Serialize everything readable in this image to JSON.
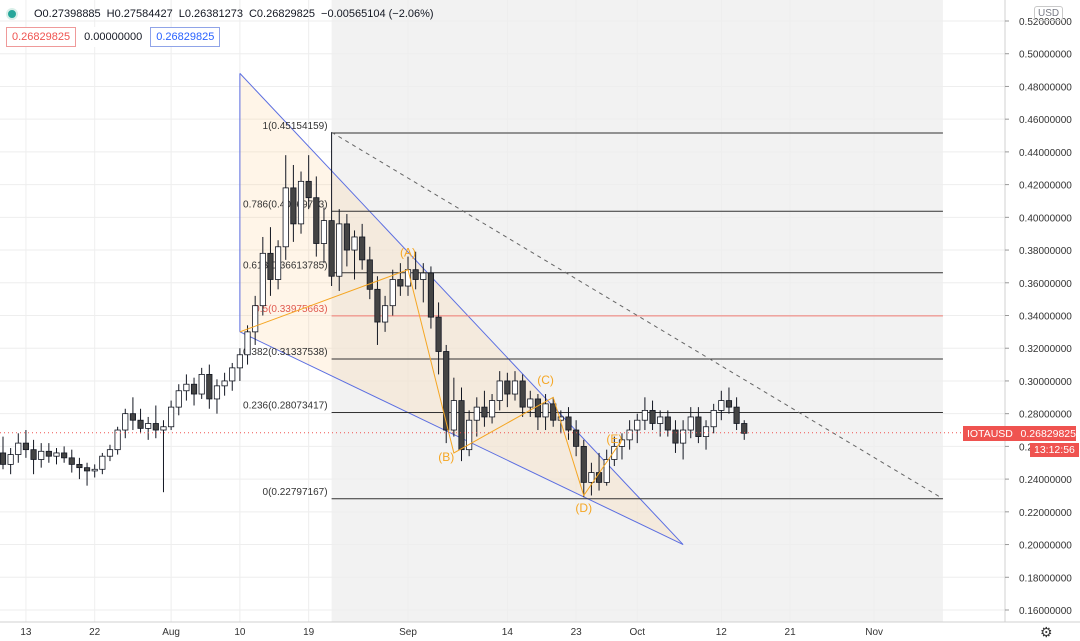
{
  "header": {
    "status_icon": "green-dot-icon",
    "open": "O0.27398885",
    "high": "H0.27584427",
    "low": "L0.26381273",
    "close": "C0.26829825",
    "change": "−0.00565104 (−2.06%)"
  },
  "boxes": {
    "left": "0.26829825",
    "mid": "0.00000000",
    "right": "0.26829825"
  },
  "currency": "USD",
  "last_price": {
    "symbol": "IOTAUSD",
    "value": "0.26829825",
    "countdown": "13:12:56"
  },
  "settings_icon": "gear-icon",
  "colors": {
    "up": "#ffffff",
    "down": "#ffffff",
    "wick": "#131722",
    "trendline": "#5b6ee1",
    "wave": "#f5a623",
    "fib_fill": "#f2f2f2",
    "price_line": "#ef5350"
  },
  "chart_data": {
    "type": "candlestick",
    "symbol": "IOTAUSD",
    "y_axis": {
      "ylim": [
        0.155,
        0.525
      ],
      "ticks": [
        0.16,
        0.18,
        0.2,
        0.22,
        0.24,
        0.26,
        0.28,
        0.3,
        0.32,
        0.34,
        0.36,
        0.38,
        0.4,
        0.42,
        0.44,
        0.46,
        0.48,
        0.5,
        0.52
      ],
      "tick_labels": [
        "0.16000000",
        "0.18000000",
        "0.20000000",
        "0.22000000",
        "0.24000000",
        "0.26000000",
        "0.28000000",
        "0.30000000",
        "0.32000000",
        "0.34000000",
        "0.36000000",
        "0.38000000",
        "0.40000000",
        "0.42000000",
        "0.44000000",
        "0.46000000",
        "0.48000000",
        "0.50000000",
        "0.52000000"
      ]
    },
    "x_axis": {
      "start": "2019-07-10",
      "end": "2019-11-07",
      "ticks": [
        {
          "date": "2019-07-13",
          "label": "13"
        },
        {
          "date": "2019-07-22",
          "label": "22"
        },
        {
          "date": "2019-08-01",
          "label": "Aug"
        },
        {
          "date": "2019-08-10",
          "label": "10"
        },
        {
          "date": "2019-08-19",
          "label": "19"
        },
        {
          "date": "2019-09-01",
          "label": "Sep"
        },
        {
          "date": "2019-09-14",
          "label": "14"
        },
        {
          "date": "2019-09-23",
          "label": "23"
        },
        {
          "date": "2019-10-01",
          "label": "Oct"
        },
        {
          "date": "2019-10-12",
          "label": "12"
        },
        {
          "date": "2019-10-21",
          "label": "21"
        },
        {
          "date": "2019-11-01",
          "label": "Nov"
        }
      ]
    },
    "candles": [
      [
        "2019-07-10",
        0.256,
        0.266,
        0.246,
        0.249
      ],
      [
        "2019-07-11",
        0.249,
        0.259,
        0.243,
        0.255
      ],
      [
        "2019-07-12",
        0.255,
        0.268,
        0.25,
        0.262
      ],
      [
        "2019-07-13",
        0.262,
        0.27,
        0.253,
        0.258
      ],
      [
        "2019-07-14",
        0.258,
        0.264,
        0.243,
        0.252
      ],
      [
        "2019-07-15",
        0.252,
        0.262,
        0.247,
        0.257
      ],
      [
        "2019-07-16",
        0.257,
        0.262,
        0.25,
        0.254
      ],
      [
        "2019-07-17",
        0.254,
        0.259,
        0.249,
        0.256
      ],
      [
        "2019-07-18",
        0.256,
        0.26,
        0.25,
        0.253
      ],
      [
        "2019-07-19",
        0.253,
        0.258,
        0.244,
        0.249
      ],
      [
        "2019-07-20",
        0.249,
        0.253,
        0.24,
        0.247
      ],
      [
        "2019-07-21",
        0.247,
        0.25,
        0.236,
        0.245
      ],
      [
        "2019-07-22",
        0.245,
        0.249,
        0.241,
        0.246
      ],
      [
        "2019-07-23",
        0.246,
        0.256,
        0.243,
        0.254
      ],
      [
        "2019-07-24",
        0.254,
        0.261,
        0.251,
        0.258
      ],
      [
        "2019-07-25",
        0.258,
        0.272,
        0.255,
        0.27
      ],
      [
        "2019-07-26",
        0.27,
        0.283,
        0.265,
        0.28
      ],
      [
        "2019-07-27",
        0.28,
        0.29,
        0.27,
        0.276
      ],
      [
        "2019-07-28",
        0.276,
        0.283,
        0.268,
        0.271
      ],
      [
        "2019-07-29",
        0.271,
        0.278,
        0.264,
        0.274
      ],
      [
        "2019-07-30",
        0.274,
        0.285,
        0.265,
        0.27
      ],
      [
        "2019-07-31",
        0.27,
        0.276,
        0.232,
        0.272
      ],
      [
        "2019-08-01",
        0.272,
        0.288,
        0.27,
        0.284
      ],
      [
        "2019-08-02",
        0.284,
        0.298,
        0.279,
        0.294
      ],
      [
        "2019-08-03",
        0.294,
        0.304,
        0.288,
        0.298
      ],
      [
        "2019-08-04",
        0.298,
        0.302,
        0.285,
        0.292
      ],
      [
        "2019-08-05",
        0.292,
        0.308,
        0.289,
        0.304
      ],
      [
        "2019-08-06",
        0.304,
        0.31,
        0.283,
        0.289
      ],
      [
        "2019-08-07",
        0.289,
        0.301,
        0.28,
        0.297
      ],
      [
        "2019-08-08",
        0.297,
        0.305,
        0.291,
        0.3
      ],
      [
        "2019-08-09",
        0.3,
        0.311,
        0.294,
        0.308
      ],
      [
        "2019-08-10",
        0.308,
        0.32,
        0.3,
        0.316
      ],
      [
        "2019-08-11",
        0.316,
        0.334,
        0.31,
        0.33
      ],
      [
        "2019-08-12",
        0.33,
        0.352,
        0.322,
        0.346
      ],
      [
        "2019-08-13",
        0.346,
        0.388,
        0.34,
        0.378
      ],
      [
        "2019-08-14",
        0.378,
        0.394,
        0.352,
        0.362
      ],
      [
        "2019-08-15",
        0.362,
        0.386,
        0.356,
        0.382
      ],
      [
        "2019-08-16",
        0.382,
        0.438,
        0.374,
        0.418
      ],
      [
        "2019-08-17",
        0.418,
        0.432,
        0.385,
        0.396
      ],
      [
        "2019-08-18",
        0.396,
        0.428,
        0.39,
        0.422
      ],
      [
        "2019-08-19",
        0.422,
        0.438,
        0.405,
        0.412
      ],
      [
        "2019-08-20",
        0.412,
        0.425,
        0.376,
        0.384
      ],
      [
        "2019-08-21",
        0.384,
        0.406,
        0.372,
        0.398
      ],
      [
        "2019-08-22",
        0.398,
        0.452,
        0.358,
        0.364
      ],
      [
        "2019-08-23",
        0.364,
        0.405,
        0.355,
        0.396
      ],
      [
        "2019-08-24",
        0.396,
        0.402,
        0.37,
        0.38
      ],
      [
        "2019-08-25",
        0.38,
        0.392,
        0.362,
        0.388
      ],
      [
        "2019-08-26",
        0.388,
        0.396,
        0.368,
        0.374
      ],
      [
        "2019-08-27",
        0.374,
        0.382,
        0.35,
        0.356
      ],
      [
        "2019-08-28",
        0.356,
        0.364,
        0.322,
        0.336
      ],
      [
        "2019-08-29",
        0.336,
        0.352,
        0.33,
        0.346
      ],
      [
        "2019-08-30",
        0.346,
        0.368,
        0.34,
        0.362
      ],
      [
        "2019-08-31",
        0.362,
        0.372,
        0.352,
        0.358
      ],
      [
        "2019-09-01",
        0.358,
        0.376,
        0.352,
        0.368
      ],
      [
        "2019-09-02",
        0.368,
        0.379,
        0.356,
        0.362
      ],
      [
        "2019-09-03",
        0.362,
        0.372,
        0.348,
        0.366
      ],
      [
        "2019-09-04",
        0.366,
        0.37,
        0.332,
        0.339
      ],
      [
        "2019-09-05",
        0.339,
        0.348,
        0.304,
        0.318
      ],
      [
        "2019-09-06",
        0.318,
        0.322,
        0.262,
        0.27
      ],
      [
        "2019-09-07",
        0.27,
        0.302,
        0.266,
        0.288
      ],
      [
        "2019-09-08",
        0.288,
        0.296,
        0.251,
        0.258
      ],
      [
        "2019-09-09",
        0.258,
        0.282,
        0.254,
        0.276
      ],
      [
        "2019-09-10",
        0.276,
        0.29,
        0.266,
        0.284
      ],
      [
        "2019-09-11",
        0.284,
        0.294,
        0.272,
        0.278
      ],
      [
        "2019-09-12",
        0.278,
        0.292,
        0.274,
        0.288
      ],
      [
        "2019-09-13",
        0.288,
        0.306,
        0.282,
        0.3
      ],
      [
        "2019-09-14",
        0.3,
        0.305,
        0.284,
        0.292
      ],
      [
        "2019-09-15",
        0.292,
        0.306,
        0.288,
        0.3
      ],
      [
        "2019-09-16",
        0.3,
        0.304,
        0.278,
        0.284
      ],
      [
        "2019-09-17",
        0.284,
        0.294,
        0.278,
        0.289
      ],
      [
        "2019-09-18",
        0.289,
        0.292,
        0.27,
        0.278
      ],
      [
        "2019-09-19",
        0.278,
        0.292,
        0.27,
        0.286
      ],
      [
        "2019-09-20",
        0.286,
        0.29,
        0.272,
        0.276
      ],
      [
        "2019-09-21",
        0.276,
        0.282,
        0.268,
        0.278
      ],
      [
        "2019-09-22",
        0.278,
        0.284,
        0.264,
        0.27
      ],
      [
        "2019-09-23",
        0.27,
        0.276,
        0.254,
        0.26
      ],
      [
        "2019-09-24",
        0.26,
        0.264,
        0.229,
        0.238
      ],
      [
        "2019-09-25",
        0.238,
        0.25,
        0.23,
        0.244
      ],
      [
        "2019-09-26",
        0.244,
        0.256,
        0.233,
        0.238
      ],
      [
        "2019-09-27",
        0.238,
        0.258,
        0.236,
        0.252
      ],
      [
        "2019-09-28",
        0.252,
        0.266,
        0.248,
        0.26
      ],
      [
        "2019-09-29",
        0.26,
        0.268,
        0.252,
        0.264
      ],
      [
        "2019-09-30",
        0.264,
        0.276,
        0.258,
        0.27
      ],
      [
        "2019-10-01",
        0.27,
        0.28,
        0.262,
        0.276
      ],
      [
        "2019-10-02",
        0.276,
        0.29,
        0.27,
        0.282
      ],
      [
        "2019-10-03",
        0.282,
        0.288,
        0.27,
        0.274
      ],
      [
        "2019-10-04",
        0.274,
        0.282,
        0.266,
        0.278
      ],
      [
        "2019-10-05",
        0.278,
        0.282,
        0.266,
        0.27
      ],
      [
        "2019-10-06",
        0.27,
        0.276,
        0.256,
        0.262
      ],
      [
        "2019-10-07",
        0.262,
        0.276,
        0.252,
        0.27
      ],
      [
        "2019-10-08",
        0.27,
        0.284,
        0.265,
        0.278
      ],
      [
        "2019-10-09",
        0.278,
        0.284,
        0.262,
        0.266
      ],
      [
        "2019-10-10",
        0.266,
        0.276,
        0.258,
        0.272
      ],
      [
        "2019-10-11",
        0.272,
        0.286,
        0.268,
        0.282
      ],
      [
        "2019-10-12",
        0.282,
        0.294,
        0.276,
        0.288
      ],
      [
        "2019-10-13",
        0.288,
        0.296,
        0.28,
        0.284
      ],
      [
        "2019-10-14",
        0.284,
        0.29,
        0.27,
        0.274
      ],
      [
        "2019-10-15",
        0.274,
        0.276,
        0.264,
        0.268
      ]
    ],
    "fib_levels": [
      {
        "ratio": "1",
        "label": "1(0.45154159)",
        "value": 0.45154159
      },
      {
        "ratio": "0.786",
        "label": "0.786(0.40369763)",
        "value": 0.40369763
      },
      {
        "ratio": "0.618",
        "label": "0.618(0.36613785)",
        "value": 0.36613785
      },
      {
        "ratio": "0.5",
        "label": "0.5(0.33975663)",
        "value": 0.33975663
      },
      {
        "ratio": "0.382",
        "label": "0.382(0.31337538)",
        "value": 0.31337538
      },
      {
        "ratio": "0.236",
        "label": "0.236(0.28073417)",
        "value": 0.28073417
      },
      {
        "ratio": "0",
        "label": "0(0.22797167)",
        "value": 0.22797167
      }
    ],
    "fib_range": {
      "start": "2019-08-22",
      "end": "2019-11-10"
    },
    "triangle": [
      {
        "date": "2019-08-10",
        "price": 0.488
      },
      {
        "date": "2019-10-07",
        "price": 0.2
      },
      {
        "date": "2019-08-10",
        "price": 0.33
      }
    ],
    "dashed_line": [
      {
        "date": "2019-08-22",
        "price": 0.452
      },
      {
        "date": "2019-11-10",
        "price": 0.228
      }
    ],
    "wave_path": [
      {
        "date": "2019-08-10",
        "price": 0.33
      },
      {
        "date": "2019-09-01",
        "price": 0.368
      },
      {
        "date": "2019-09-07",
        "price": 0.256
      },
      {
        "date": "2019-09-20",
        "price": 0.29
      },
      {
        "date": "2019-09-24",
        "price": 0.23
      },
      {
        "date": "2019-09-29",
        "price": 0.264
      }
    ],
    "wave_labels": [
      {
        "text": "(A)",
        "date": "2019-09-01",
        "price": 0.376
      },
      {
        "text": "(B)",
        "date": "2019-09-06",
        "price": 0.251
      },
      {
        "text": "(C)",
        "date": "2019-09-19",
        "price": 0.298
      },
      {
        "text": "(D)",
        "date": "2019-09-24",
        "price": 0.22
      },
      {
        "text": "(E)",
        "date": "2019-09-28",
        "price": 0.262
      }
    ],
    "last_price": 0.26829825
  }
}
